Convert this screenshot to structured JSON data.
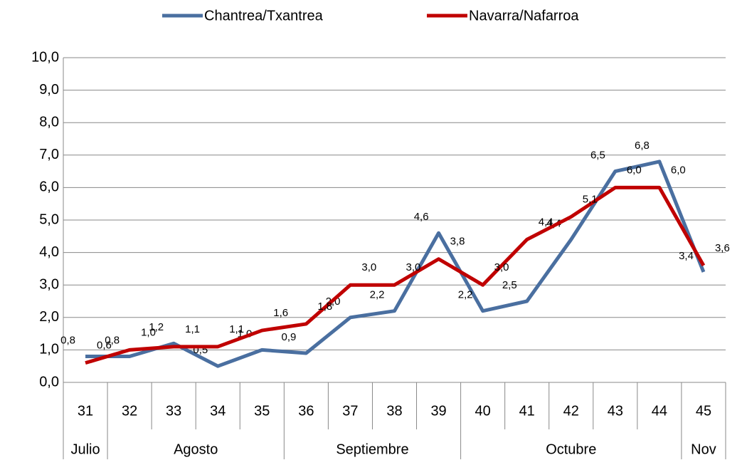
{
  "chart_data": {
    "type": "line",
    "categories": [
      "31",
      "32",
      "33",
      "34",
      "35",
      "36",
      "37",
      "38",
      "39",
      "40",
      "41",
      "42",
      "43",
      "44",
      "45"
    ],
    "month_groups": [
      {
        "name": "Julio",
        "span": 1
      },
      {
        "name": "Agosto",
        "span": 4
      },
      {
        "name": "Septiembre",
        "span": 4
      },
      {
        "name": "Octubre",
        "span": 5
      },
      {
        "name": "Nov",
        "span": 1
      }
    ],
    "series": [
      {
        "name": "Chantrea/Txantrea",
        "color": "#4a6fa0",
        "values": [
          0.8,
          0.8,
          1.2,
          0.5,
          1.0,
          0.9,
          2.0,
          2.2,
          4.6,
          2.2,
          2.5,
          4.4,
          6.5,
          6.8,
          3.4
        ],
        "value_labels": [
          "0,8",
          "0,8",
          "1,2",
          "0,5",
          "1,0",
          "0,9",
          "2,0",
          "2,2",
          "4,6",
          "2,2",
          "2,5",
          "4,4",
          "6,5",
          "6,8",
          "3,4"
        ]
      },
      {
        "name": "Navarra/Nafarroa",
        "color": "#c00000",
        "values": [
          0.6,
          1.0,
          1.1,
          1.1,
          1.6,
          1.8,
          3.0,
          3.0,
          3.8,
          3.0,
          4.4,
          5.1,
          6.0,
          6.0,
          3.6
        ],
        "value_labels": [
          "0,6",
          "1,0",
          "1,1",
          "1,1",
          "1,6",
          "1,8",
          "3,0",
          "3,0",
          "3,8",
          "3,0",
          "4,4",
          "5,1",
          "6,0",
          "6,0",
          "3,6"
        ]
      }
    ],
    "ylim": [
      0,
      10
    ],
    "yticks": [
      {
        "value": 0,
        "label": "0,0"
      },
      {
        "value": 1,
        "label": "1,0"
      },
      {
        "value": 2,
        "label": "2,0"
      },
      {
        "value": 3,
        "label": "3,0"
      },
      {
        "value": 4,
        "label": "4,0"
      },
      {
        "value": 5,
        "label": "5,0"
      },
      {
        "value": 6,
        "label": "6,0"
      },
      {
        "value": 7,
        "label": "7,0"
      },
      {
        "value": 8,
        "label": "8,0"
      },
      {
        "value": 9,
        "label": "9,0"
      },
      {
        "value": 10,
        "label": "10,0"
      }
    ],
    "grid": true,
    "legend": "top"
  }
}
